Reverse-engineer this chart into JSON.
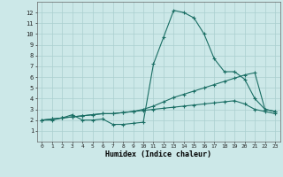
{
  "xlabel": "Humidex (Indice chaleur)",
  "bg_color": "#cce8e8",
  "grid_color": "#aacfcf",
  "line_color": "#1a6e64",
  "x_values": [
    0,
    1,
    2,
    3,
    4,
    5,
    6,
    7,
    8,
    9,
    10,
    11,
    12,
    13,
    14,
    15,
    16,
    17,
    18,
    19,
    20,
    21,
    22,
    23
  ],
  "series1": [
    2,
    2,
    2.2,
    2.5,
    2,
    2,
    2.1,
    1.6,
    1.6,
    1.7,
    1.8,
    7.2,
    9.7,
    12.2,
    12.0,
    11.5,
    10.0,
    7.7,
    6.5,
    6.5,
    5.8,
    4.0,
    3.0,
    2.8
  ],
  "series2": [
    2.0,
    2.1,
    2.2,
    2.3,
    2.4,
    2.5,
    2.6,
    2.6,
    2.7,
    2.8,
    3.0,
    3.3,
    3.7,
    4.1,
    4.4,
    4.7,
    5.0,
    5.3,
    5.6,
    5.9,
    6.2,
    6.4,
    3.0,
    2.8
  ],
  "series3": [
    2.0,
    2.1,
    2.2,
    2.3,
    2.4,
    2.5,
    2.6,
    2.6,
    2.7,
    2.8,
    2.9,
    3.0,
    3.1,
    3.2,
    3.3,
    3.4,
    3.5,
    3.6,
    3.7,
    3.8,
    3.5,
    3.0,
    2.8,
    2.6
  ],
  "ylim": [
    0,
    13
  ],
  "xlim": [
    -0.5,
    23.5
  ],
  "yticks": [
    1,
    2,
    3,
    4,
    5,
    6,
    7,
    8,
    9,
    10,
    11,
    12
  ],
  "xticks": [
    0,
    1,
    2,
    3,
    4,
    5,
    6,
    7,
    8,
    9,
    10,
    11,
    12,
    13,
    14,
    15,
    16,
    17,
    18,
    19,
    20,
    21,
    22,
    23
  ]
}
